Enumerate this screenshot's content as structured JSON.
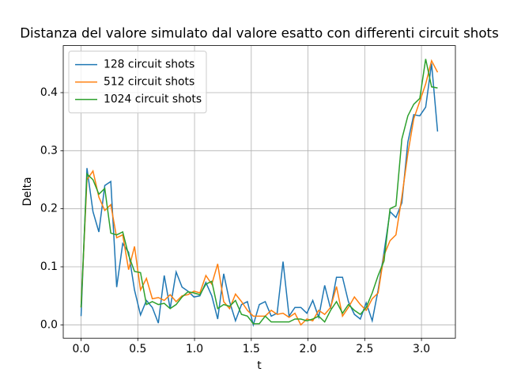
{
  "chart_data": {
    "type": "line",
    "title": "Distanza del valore simulato dal valore esatto con differenti circuit shots",
    "x_label": "t",
    "y_label": "Delta",
    "x": [
      0,
      0.052,
      0.105,
      0.157,
      0.209,
      0.262,
      0.314,
      0.367,
      0.419,
      0.471,
      0.524,
      0.576,
      0.628,
      0.681,
      0.733,
      0.785,
      0.838,
      0.89,
      0.942,
      0.995,
      1.047,
      1.1,
      1.152,
      1.204,
      1.257,
      1.309,
      1.361,
      1.414,
      1.466,
      1.518,
      1.571,
      1.623,
      1.676,
      1.728,
      1.78,
      1.833,
      1.885,
      1.937,
      1.99,
      2.042,
      2.094,
      2.147,
      2.199,
      2.251,
      2.304,
      2.356,
      2.409,
      2.461,
      2.513,
      2.566,
      2.618,
      2.67,
      2.723,
      2.775,
      2.827,
      2.88,
      2.932,
      2.985,
      3.037,
      3.089,
      3.142
    ],
    "series": [
      {
        "name": "128 circuit shots",
        "color": "#1f77b4",
        "values": [
          0.015,
          0.27,
          0.195,
          0.16,
          0.24,
          0.247,
          0.065,
          0.14,
          0.125,
          0.06,
          0.017,
          0.042,
          0.03,
          0.003,
          0.085,
          0.028,
          0.091,
          0.065,
          0.058,
          0.048,
          0.05,
          0.073,
          0.05,
          0.01,
          0.088,
          0.04,
          0.007,
          0.035,
          0.04,
          0.0,
          0.035,
          0.04,
          0.015,
          0.02,
          0.109,
          0.015,
          0.03,
          0.03,
          0.02,
          0.042,
          0.013,
          0.068,
          0.028,
          0.082,
          0.082,
          0.04,
          0.018,
          0.01,
          0.038,
          0.007,
          0.06,
          0.125,
          0.195,
          0.185,
          0.21,
          0.315,
          0.362,
          0.36,
          0.375,
          0.45,
          0.333
        ]
      },
      {
        "name": "512 circuit shots",
        "color": "#ff7f0e",
        "values": [
          0.03,
          0.25,
          0.265,
          0.22,
          0.197,
          0.207,
          0.15,
          0.155,
          0.095,
          0.135,
          0.06,
          0.08,
          0.045,
          0.047,
          0.042,
          0.052,
          0.04,
          0.05,
          0.052,
          0.058,
          0.055,
          0.085,
          0.07,
          0.105,
          0.04,
          0.028,
          0.053,
          0.04,
          0.025,
          0.015,
          0.015,
          0.015,
          0.025,
          0.018,
          0.02,
          0.013,
          0.02,
          0.0,
          0.01,
          0.007,
          0.025,
          0.018,
          0.03,
          0.066,
          0.015,
          0.03,
          0.048,
          0.035,
          0.025,
          0.045,
          0.055,
          0.12,
          0.145,
          0.155,
          0.22,
          0.295,
          0.355,
          0.385,
          0.415,
          0.455,
          0.435
        ]
      },
      {
        "name": "1024 circuit shots",
        "color": "#2ca02c",
        "values": [
          0.03,
          0.26,
          0.25,
          0.225,
          0.235,
          0.158,
          0.155,
          0.16,
          0.12,
          0.092,
          0.09,
          0.035,
          0.04,
          0.035,
          0.037,
          0.028,
          0.035,
          0.048,
          0.057,
          0.055,
          0.052,
          0.07,
          0.075,
          0.028,
          0.035,
          0.032,
          0.042,
          0.018,
          0.015,
          0.002,
          0.002,
          0.015,
          0.005,
          0.005,
          0.005,
          0.005,
          0.01,
          0.01,
          0.007,
          0.01,
          0.015,
          0.005,
          0.025,
          0.04,
          0.02,
          0.035,
          0.025,
          0.018,
          0.03,
          0.055,
          0.085,
          0.11,
          0.2,
          0.205,
          0.32,
          0.36,
          0.38,
          0.39,
          0.458,
          0.41,
          0.408
        ]
      }
    ],
    "xlim": [
      -0.157,
      3.299
    ],
    "ylim": [
      -0.023,
      0.481
    ],
    "xticks": [
      {
        "value": 0,
        "label": "0.0"
      },
      {
        "value": 0.5,
        "label": "0.5"
      },
      {
        "value": 1,
        "label": "1.0"
      },
      {
        "value": 1.5,
        "label": "1.5"
      },
      {
        "value": 2,
        "label": "2.0"
      },
      {
        "value": 2.5,
        "label": "2.5"
      },
      {
        "value": 3,
        "label": "3.0"
      }
    ],
    "yticks": [
      {
        "value": 0,
        "label": "0.0"
      },
      {
        "value": 0.1,
        "label": "0.1"
      },
      {
        "value": 0.2,
        "label": "0.2"
      },
      {
        "value": 0.3,
        "label": "0.3"
      },
      {
        "value": 0.4,
        "label": "0.4"
      }
    ],
    "grid": true,
    "legend": "upper left"
  }
}
